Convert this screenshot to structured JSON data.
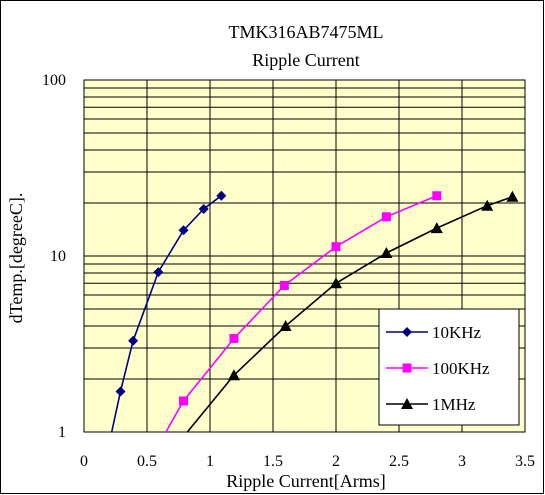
{
  "chart_data": {
    "type": "line",
    "title": "TMK316AB7475ML",
    "subtitle": "Ripple Current",
    "xlabel": "Ripple Current[Arms]",
    "ylabel": "dTemp.[degreeC].",
    "xlim": [
      0,
      3.5
    ],
    "ylim": [
      1,
      100
    ],
    "y_scale": "log",
    "x_ticks": [
      "0",
      "0.5",
      "1",
      "1.5",
      "2",
      "2.5",
      "3",
      "3.5"
    ],
    "y_ticks": [
      "1",
      "10",
      "100"
    ],
    "grid": true,
    "legend_position": "bottom-right",
    "plot_background": "#ffffcc",
    "series": [
      {
        "name": "10KHz",
        "color": "#000080",
        "marker": "diamond",
        "points": [
          [
            0.29,
            1.7
          ],
          [
            0.39,
            3.3
          ],
          [
            0.59,
            8.1
          ],
          [
            0.79,
            14
          ],
          [
            0.95,
            18.5
          ],
          [
            1.09,
            22
          ]
        ],
        "curve": [
          [
            0.22,
            1.0
          ],
          [
            0.29,
            1.7
          ],
          [
            0.39,
            3.3
          ],
          [
            0.59,
            8.1
          ],
          [
            0.79,
            14
          ],
          [
            0.95,
            18.5
          ],
          [
            1.09,
            22
          ]
        ]
      },
      {
        "name": "100KHz",
        "color": "#ff00ff",
        "marker": "square",
        "points": [
          [
            0.79,
            1.5
          ],
          [
            1.19,
            3.4
          ],
          [
            1.59,
            6.8
          ],
          [
            2.0,
            11.3
          ],
          [
            2.4,
            16.7
          ],
          [
            2.8,
            22
          ]
        ],
        "curve": [
          [
            0.65,
            1.0
          ],
          [
            0.79,
            1.5
          ],
          [
            1.19,
            3.4
          ],
          [
            1.59,
            6.8
          ],
          [
            2.0,
            11.3
          ],
          [
            2.4,
            16.7
          ],
          [
            2.8,
            22
          ]
        ]
      },
      {
        "name": "1MHz",
        "color": "#000000",
        "marker": "triangle",
        "points": [
          [
            1.19,
            2.1
          ],
          [
            1.6,
            4.0
          ],
          [
            2.0,
            7.0
          ],
          [
            2.4,
            10.4
          ],
          [
            2.8,
            14.4
          ],
          [
            3.2,
            19.3
          ],
          [
            3.4,
            21.7
          ]
        ],
        "curve": [
          [
            0.82,
            1.0
          ],
          [
            1.19,
            2.1
          ],
          [
            1.6,
            4.0
          ],
          [
            2.0,
            7.0
          ],
          [
            2.4,
            10.4
          ],
          [
            2.8,
            14.4
          ],
          [
            3.2,
            19.3
          ],
          [
            3.4,
            21.7
          ]
        ]
      }
    ]
  }
}
